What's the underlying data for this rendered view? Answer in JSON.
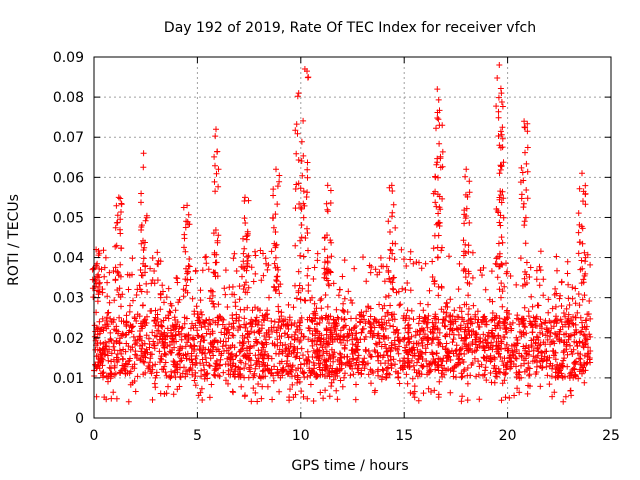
{
  "chart_data": {
    "type": "scatter",
    "title": "Day 192 of 2019, Rate Of TEC Index for receiver vfch",
    "xlabel": "GPS time / hours",
    "ylabel": "ROTI / TECUs",
    "xlim": [
      0,
      25
    ],
    "ylim": [
      0,
      0.09
    ],
    "xticks": [
      0,
      5,
      10,
      15,
      20,
      25
    ],
    "xtick_labels": [
      "0",
      "5",
      "10",
      "15",
      "20",
      "25"
    ],
    "yticks": [
      0,
      0.01,
      0.02,
      0.03,
      0.04,
      0.05,
      0.06,
      0.07,
      0.08,
      0.09
    ],
    "ytick_labels": [
      "0",
      "0.01",
      "0.02",
      "0.03",
      "0.04",
      "0.05",
      "0.06",
      "0.07",
      "0.08",
      "0.09"
    ],
    "grid": true,
    "marker": "+",
    "series": [
      {
        "name": "ROTI",
        "color": "#ff0000",
        "x_range": [
          0,
          24
        ],
        "typical_band": [
          0.01,
          0.025
        ],
        "min_value": 0.004,
        "peaks": [
          {
            "x": 0.1,
            "y": 0.042
          },
          {
            "x": 1.2,
            "y": 0.055
          },
          {
            "x": 2.4,
            "y": 0.066
          },
          {
            "x": 4.5,
            "y": 0.053
          },
          {
            "x": 5.9,
            "y": 0.072
          },
          {
            "x": 7.3,
            "y": 0.055
          },
          {
            "x": 8.8,
            "y": 0.062
          },
          {
            "x": 9.9,
            "y": 0.081
          },
          {
            "x": 10.2,
            "y": 0.087
          },
          {
            "x": 11.3,
            "y": 0.058
          },
          {
            "x": 14.4,
            "y": 0.058
          },
          {
            "x": 16.6,
            "y": 0.082
          },
          {
            "x": 16.7,
            "y": 0.073
          },
          {
            "x": 18.0,
            "y": 0.062
          },
          {
            "x": 19.6,
            "y": 0.088
          },
          {
            "x": 19.7,
            "y": 0.081
          },
          {
            "x": 20.8,
            "y": 0.074
          },
          {
            "x": 23.6,
            "y": 0.061
          }
        ]
      }
    ]
  }
}
